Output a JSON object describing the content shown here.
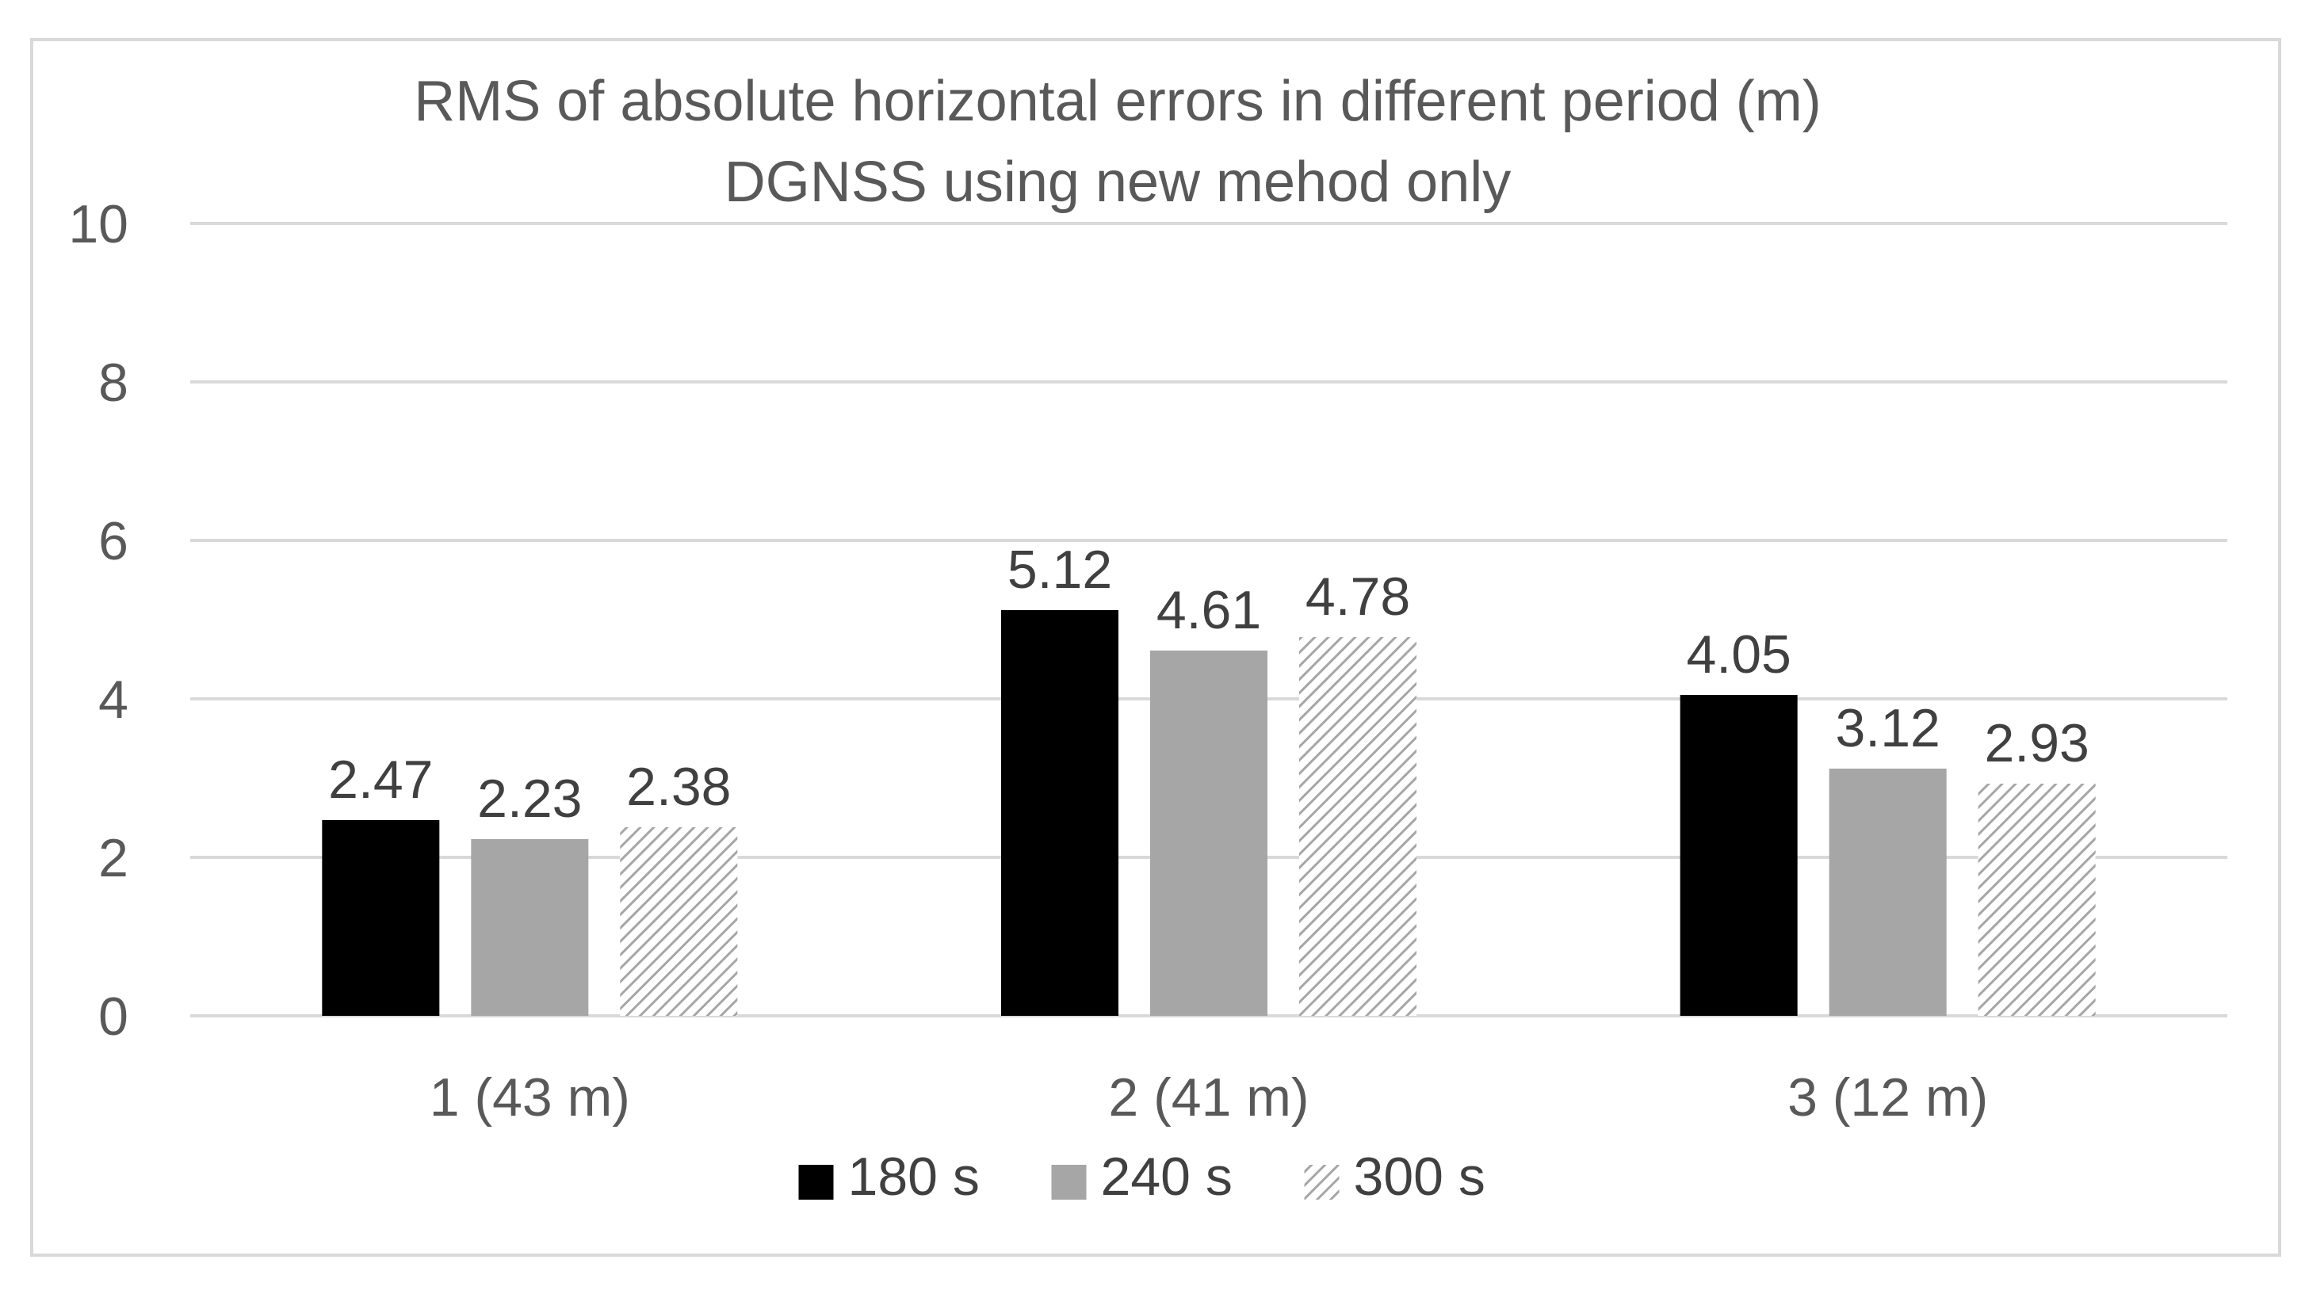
{
  "chart_data": {
    "type": "bar",
    "title": "RMS of absolute horizontal errors in different period (m)",
    "subtitle": "DGNSS using new mehod only",
    "xlabel": "",
    "ylabel": "",
    "categories": [
      "1 (43 m)",
      "2 (41 m)",
      "3 (12 m)"
    ],
    "series": [
      {
        "name": "180 s",
        "values": [
          2.47,
          5.12,
          4.05
        ],
        "labels": [
          "2.47",
          "5.12",
          "4.05"
        ],
        "color": "#000000",
        "fill": "solid"
      },
      {
        "name": "240 s",
        "values": [
          2.23,
          4.61,
          3.12
        ],
        "labels": [
          "2.23",
          "4.61",
          "3.12"
        ],
        "color": "#a6a6a6",
        "fill": "solid"
      },
      {
        "name": "300 s",
        "values": [
          2.38,
          4.78,
          2.93
        ],
        "labels": [
          "2.38",
          "4.78",
          "2.93"
        ],
        "color": "#a6a6a6",
        "fill": "diagonal-hatch"
      }
    ],
    "ylim": [
      0,
      10
    ],
    "yticks": [
      0,
      2,
      4,
      6,
      8,
      10
    ],
    "grid": true,
    "legend_position": "bottom"
  }
}
